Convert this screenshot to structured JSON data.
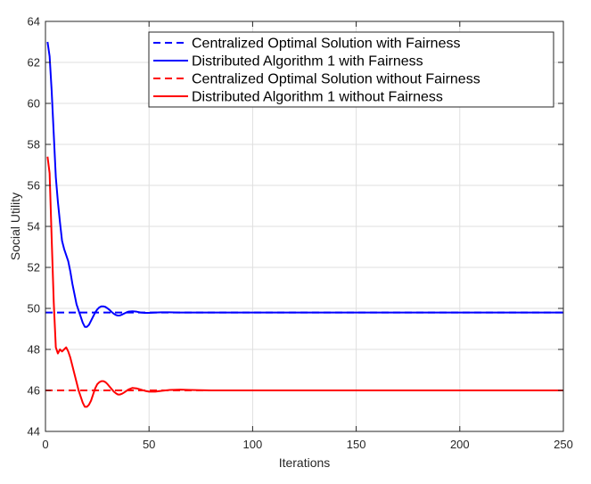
{
  "chart_data": {
    "type": "line",
    "title": "",
    "xlabel": "Iterations",
    "ylabel": "Social Utility",
    "xlim": [
      0,
      250
    ],
    "ylim": [
      44,
      64
    ],
    "xticks": [
      0,
      50,
      100,
      150,
      200,
      250
    ],
    "yticks": [
      44,
      46,
      48,
      50,
      52,
      54,
      56,
      58,
      60,
      62,
      64
    ],
    "grid": true,
    "legend_position": "top-right",
    "series": [
      {
        "name": "Centralized Optimal Solution with Fairness",
        "color": "#0000ff",
        "dash": "dashed",
        "x": [
          0,
          250
        ],
        "y": [
          49.8,
          49.8
        ]
      },
      {
        "name": "Distributed Algorithm 1 with Fairness",
        "color": "#0000ff",
        "dash": "solid",
        "x": [
          1,
          2,
          3,
          4,
          5,
          6,
          7,
          8,
          9,
          10,
          11,
          12,
          13,
          14,
          15,
          16,
          17,
          18,
          19,
          20,
          21,
          22,
          23,
          24,
          25,
          26,
          27,
          28,
          29,
          30,
          31,
          32,
          33,
          34,
          35,
          36,
          37,
          38,
          39,
          40,
          42,
          44,
          46,
          48,
          50,
          53,
          56,
          60,
          65,
          70,
          80,
          90,
          100,
          120,
          150,
          200,
          250
        ],
        "y": [
          63.0,
          62.3,
          60.6,
          58.5,
          56.4,
          55.2,
          54.2,
          53.3,
          52.9,
          52.6,
          52.3,
          51.8,
          51.2,
          50.7,
          50.2,
          49.9,
          49.6,
          49.3,
          49.1,
          49.1,
          49.2,
          49.4,
          49.6,
          49.8,
          49.95,
          50.05,
          50.1,
          50.1,
          50.07,
          50.0,
          49.92,
          49.82,
          49.74,
          49.68,
          49.65,
          49.66,
          49.7,
          49.75,
          49.8,
          49.84,
          49.86,
          49.84,
          49.8,
          49.78,
          49.78,
          49.8,
          49.81,
          49.81,
          49.8,
          49.8,
          49.8,
          49.8,
          49.8,
          49.8,
          49.8,
          49.8,
          49.8
        ]
      },
      {
        "name": "Centralized Optimal Solution without Fairness",
        "color": "#ff0000",
        "dash": "dashed",
        "x": [
          0,
          250
        ],
        "y": [
          46.0,
          46.0
        ]
      },
      {
        "name": "Distributed Algorithm 1 without Fairness",
        "color": "#ff0000",
        "dash": "solid",
        "x": [
          1,
          2,
          3,
          4,
          5,
          6,
          7,
          8,
          9,
          10,
          11,
          12,
          13,
          14,
          15,
          16,
          17,
          18,
          19,
          20,
          21,
          22,
          23,
          24,
          25,
          26,
          27,
          28,
          29,
          30,
          31,
          32,
          33,
          34,
          35,
          36,
          37,
          38,
          39,
          40,
          42,
          44,
          46,
          48,
          50,
          53,
          56,
          60,
          65,
          70,
          80,
          90,
          100,
          120,
          150,
          200,
          250
        ],
        "y": [
          57.4,
          56.6,
          53.4,
          50.3,
          48.1,
          47.8,
          48.0,
          47.9,
          48.0,
          48.1,
          47.9,
          47.6,
          47.2,
          46.8,
          46.4,
          46.0,
          45.7,
          45.4,
          45.2,
          45.2,
          45.3,
          45.5,
          45.8,
          46.1,
          46.3,
          46.4,
          46.45,
          46.45,
          46.4,
          46.3,
          46.18,
          46.06,
          45.94,
          45.86,
          45.8,
          45.8,
          45.84,
          45.9,
          45.97,
          46.04,
          46.12,
          46.1,
          46.04,
          45.98,
          45.94,
          45.94,
          45.98,
          46.02,
          46.04,
          46.02,
          46.0,
          46.0,
          46.0,
          46.0,
          46.0,
          46.0,
          46.0
        ]
      }
    ]
  }
}
